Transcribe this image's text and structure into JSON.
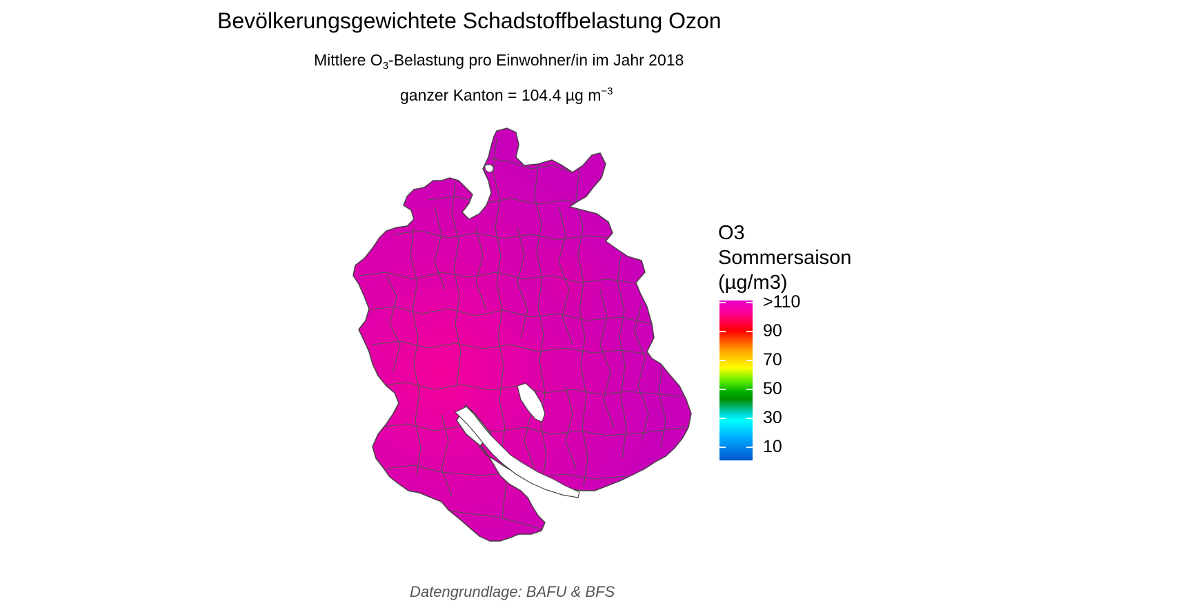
{
  "title": "Bevölkerungsgewichtete Schadstoffbelastung Ozon",
  "subtitle": {
    "prefix": "Mittlere O",
    "subscript": "3",
    "suffix": "-Belastung pro Einwohner/in im Jahr 2018"
  },
  "subtitle2": {
    "text": "ganzer Kanton = 104.4 µg m",
    "superscript": "−3"
  },
  "legend": {
    "title_lines": [
      "O3",
      "Sommersaison",
      "(µg/m3)"
    ],
    "labels": [
      ">110",
      "90",
      "70",
      "50",
      "30",
      "10"
    ]
  },
  "caption": "Datengrundlage: BAFU & BFS",
  "colors": {
    "map_fill": "#cc00b8",
    "map_fill_hot": "#f0009a",
    "boundary": "#555555"
  }
}
